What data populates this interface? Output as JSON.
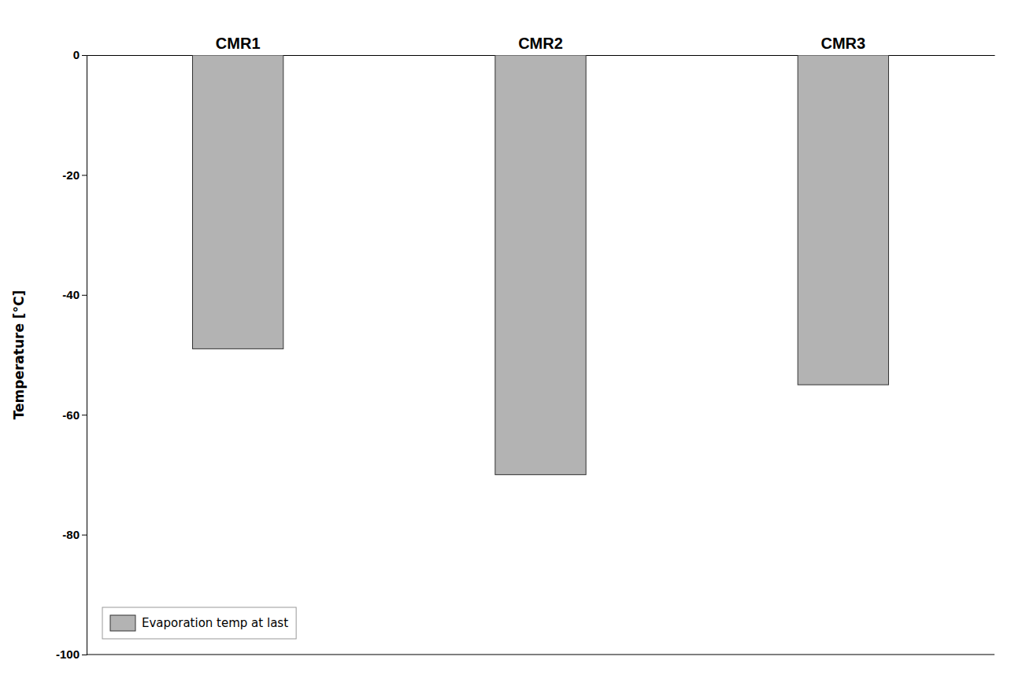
{
  "chart_data": {
    "type": "bar",
    "categories": [
      "CMR1",
      "CMR2",
      "CMR3"
    ],
    "series": [
      {
        "name": "Evaporation temp at last",
        "color": "#b3b3b3",
        "values": [
          -49,
          -70,
          -55
        ]
      }
    ],
    "ylabel": "Temperature [°C]",
    "ylim": [
      -100,
      0
    ],
    "yticks": [
      0,
      -20,
      -40,
      -60,
      -80,
      -100
    ],
    "grid": false,
    "legend": "lower left"
  }
}
